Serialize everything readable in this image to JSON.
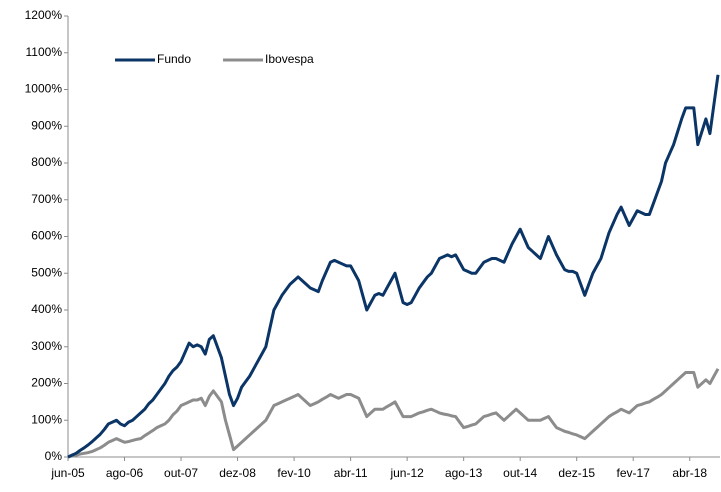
{
  "chart_data": {
    "type": "line",
    "categories": [
      "jun-05",
      null,
      null,
      null,
      null,
      null,
      null,
      null,
      null,
      null,
      null,
      null,
      null,
      null,
      "ago-06",
      null,
      null,
      null,
      null,
      null,
      null,
      null,
      null,
      null,
      null,
      null,
      null,
      null,
      "out-07",
      null,
      null,
      null,
      null,
      null,
      null,
      null,
      null,
      null,
      null,
      null,
      null,
      null,
      "dez-08",
      null,
      null,
      null,
      null,
      null,
      null,
      null,
      null,
      null,
      null,
      null,
      null,
      null,
      "fev-10",
      null,
      null,
      null,
      null,
      null,
      null,
      null,
      null,
      null,
      null,
      null,
      null,
      null,
      "abr-11",
      null,
      null,
      null,
      null,
      null,
      null,
      null,
      null,
      null,
      null,
      null,
      null,
      null,
      "jun-12",
      null,
      null,
      null,
      null,
      null,
      null,
      null,
      null,
      null,
      null,
      null,
      null,
      null,
      "ago-13",
      null,
      null,
      null,
      null,
      null,
      null,
      null,
      null,
      null,
      null,
      null,
      null,
      null,
      "out-14",
      null,
      null,
      null,
      null,
      null,
      null,
      null,
      null,
      null,
      null,
      null,
      null,
      null,
      "dez-15",
      null,
      null,
      null,
      null,
      null,
      null,
      null,
      null,
      null,
      null,
      null,
      null,
      null,
      "fev-17",
      null,
      null,
      null,
      null,
      null,
      null,
      null,
      null,
      null,
      null,
      null,
      null,
      null,
      "abr-18",
      null,
      null,
      null,
      null,
      null,
      null,
      null
    ],
    "series": [
      {
        "name": "Fundo",
        "color": "#0b3566",
        "values": [
          0,
          5,
          10,
          18,
          25,
          33,
          42,
          52,
          62,
          75,
          90,
          95,
          100,
          90,
          85,
          95,
          100,
          110,
          120,
          130,
          145,
          155,
          170,
          185,
          200,
          220,
          235,
          245,
          260,
          285,
          310,
          300,
          305,
          300,
          280,
          320,
          330,
          300,
          270,
          220,
          170,
          140,
          160,
          190,
          205,
          220,
          240,
          260,
          280,
          300,
          350,
          400,
          420,
          440,
          455,
          470,
          480,
          490,
          480,
          470,
          460,
          455,
          450,
          480,
          505,
          530,
          535,
          530,
          525,
          520,
          520,
          500,
          480,
          440,
          400,
          420,
          440,
          445,
          440,
          460,
          480,
          500,
          460,
          420,
          415,
          420,
          440,
          460,
          475,
          490,
          500,
          520,
          540,
          545,
          550,
          545,
          550,
          530,
          510,
          505,
          500,
          500,
          515,
          530,
          535,
          540,
          540,
          535,
          530,
          555,
          580,
          600,
          620,
          595,
          570,
          560,
          550,
          540,
          570,
          600,
          575,
          550,
          530,
          510,
          505,
          505,
          500,
          470,
          440,
          470,
          500,
          520,
          540,
          575,
          610,
          635,
          660,
          680,
          655,
          630,
          650,
          670,
          665,
          660,
          660,
          690,
          720,
          750,
          800,
          825,
          850,
          885,
          920,
          950,
          950,
          950,
          850,
          885,
          920,
          880,
          960,
          1040
        ]
      },
      {
        "name": "Ibovespa",
        "color": "#8c8c8c",
        "values": [
          0,
          3,
          5,
          8,
          10,
          12,
          15,
          20,
          25,
          32,
          40,
          45,
          50,
          45,
          40,
          42,
          45,
          48,
          50,
          58,
          65,
          72,
          80,
          85,
          90,
          100,
          115,
          125,
          140,
          145,
          150,
          155,
          155,
          160,
          140,
          165,
          180,
          165,
          150,
          100,
          60,
          20,
          30,
          40,
          50,
          60,
          70,
          80,
          90,
          100,
          120,
          140,
          145,
          150,
          155,
          160,
          165,
          170,
          160,
          150,
          140,
          145,
          150,
          157,
          163,
          170,
          165,
          160,
          165,
          170,
          170,
          165,
          160,
          135,
          110,
          120,
          130,
          130,
          130,
          137,
          143,
          150,
          130,
          110,
          110,
          110,
          115,
          120,
          123,
          127,
          130,
          125,
          120,
          117,
          115,
          112,
          110,
          95,
          80,
          83,
          87,
          90,
          100,
          110,
          113,
          117,
          120,
          110,
          100,
          110,
          120,
          130,
          120,
          110,
          100,
          100,
          100,
          100,
          105,
          110,
          95,
          80,
          75,
          70,
          67,
          63,
          60,
          55,
          50,
          60,
          70,
          80,
          90,
          100,
          110,
          117,
          123,
          130,
          125,
          120,
          130,
          140,
          143,
          147,
          150,
          157,
          163,
          170,
          180,
          190,
          200,
          210,
          220,
          230,
          230,
          230,
          190,
          200,
          210,
          200,
          220,
          240
        ]
      }
    ],
    "ylim": [
      0,
      1200
    ],
    "yticks": [
      {
        "value": 0,
        "label": "0%"
      },
      {
        "value": 100,
        "label": "100%"
      },
      {
        "value": 200,
        "label": "200%"
      },
      {
        "value": 300,
        "label": "300%"
      },
      {
        "value": 400,
        "label": "400%"
      },
      {
        "value": 500,
        "label": "500%"
      },
      {
        "value": 600,
        "label": "600%"
      },
      {
        "value": 700,
        "label": "700%"
      },
      {
        "value": 800,
        "label": "800%"
      },
      {
        "value": 900,
        "label": "900%"
      },
      {
        "value": 1000,
        "label": "1000%"
      },
      {
        "value": 1100,
        "label": "1100%"
      },
      {
        "value": 1200,
        "label": "1200%"
      }
    ],
    "grid": false,
    "legend": "top-left"
  }
}
